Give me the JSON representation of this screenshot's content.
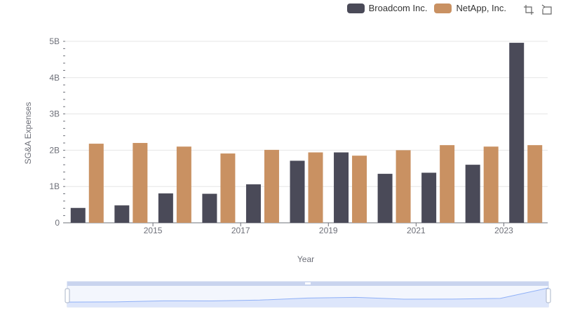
{
  "chart_data": {
    "type": "bar",
    "xlabel": "Year",
    "ylabel": "SG&A Expenses",
    "categories": [
      "2014",
      "2015",
      "2016",
      "2017",
      "2018",
      "2019",
      "2020",
      "2021",
      "2022",
      "2023",
      "2024"
    ],
    "x_tick_labels": [
      "2015",
      "2017",
      "2019",
      "2021",
      "2023"
    ],
    "y_tick_labels": [
      "0",
      "1B",
      "2B",
      "3B",
      "4B",
      "5B"
    ],
    "ylim": [
      0,
      5000000000
    ],
    "grid": true,
    "legend_position": "top-right",
    "series": [
      {
        "name": "Broadcom Inc.",
        "color": "#4a4a58",
        "values": [
          410000000,
          480000000,
          810000000,
          800000000,
          1060000000,
          1710000000,
          1940000000,
          1350000000,
          1380000000,
          1600000000,
          4960000000
        ]
      },
      {
        "name": "NetApp, Inc.",
        "color": "#c99162",
        "values": [
          2180000000,
          2200000000,
          2100000000,
          1910000000,
          2010000000,
          1940000000,
          1850000000,
          2000000000,
          2140000000,
          2100000000,
          2140000000
        ]
      }
    ]
  },
  "toolbox": {
    "zoom_icon": "zoom-icon",
    "restore_icon": "restore-icon"
  },
  "colors": {
    "grid": "#e6e6e6",
    "axis": "#6e7079",
    "slider_fill": "#dde6fb",
    "slider_border": "#c9d4ee",
    "slider_line": "#8fb0f7"
  }
}
